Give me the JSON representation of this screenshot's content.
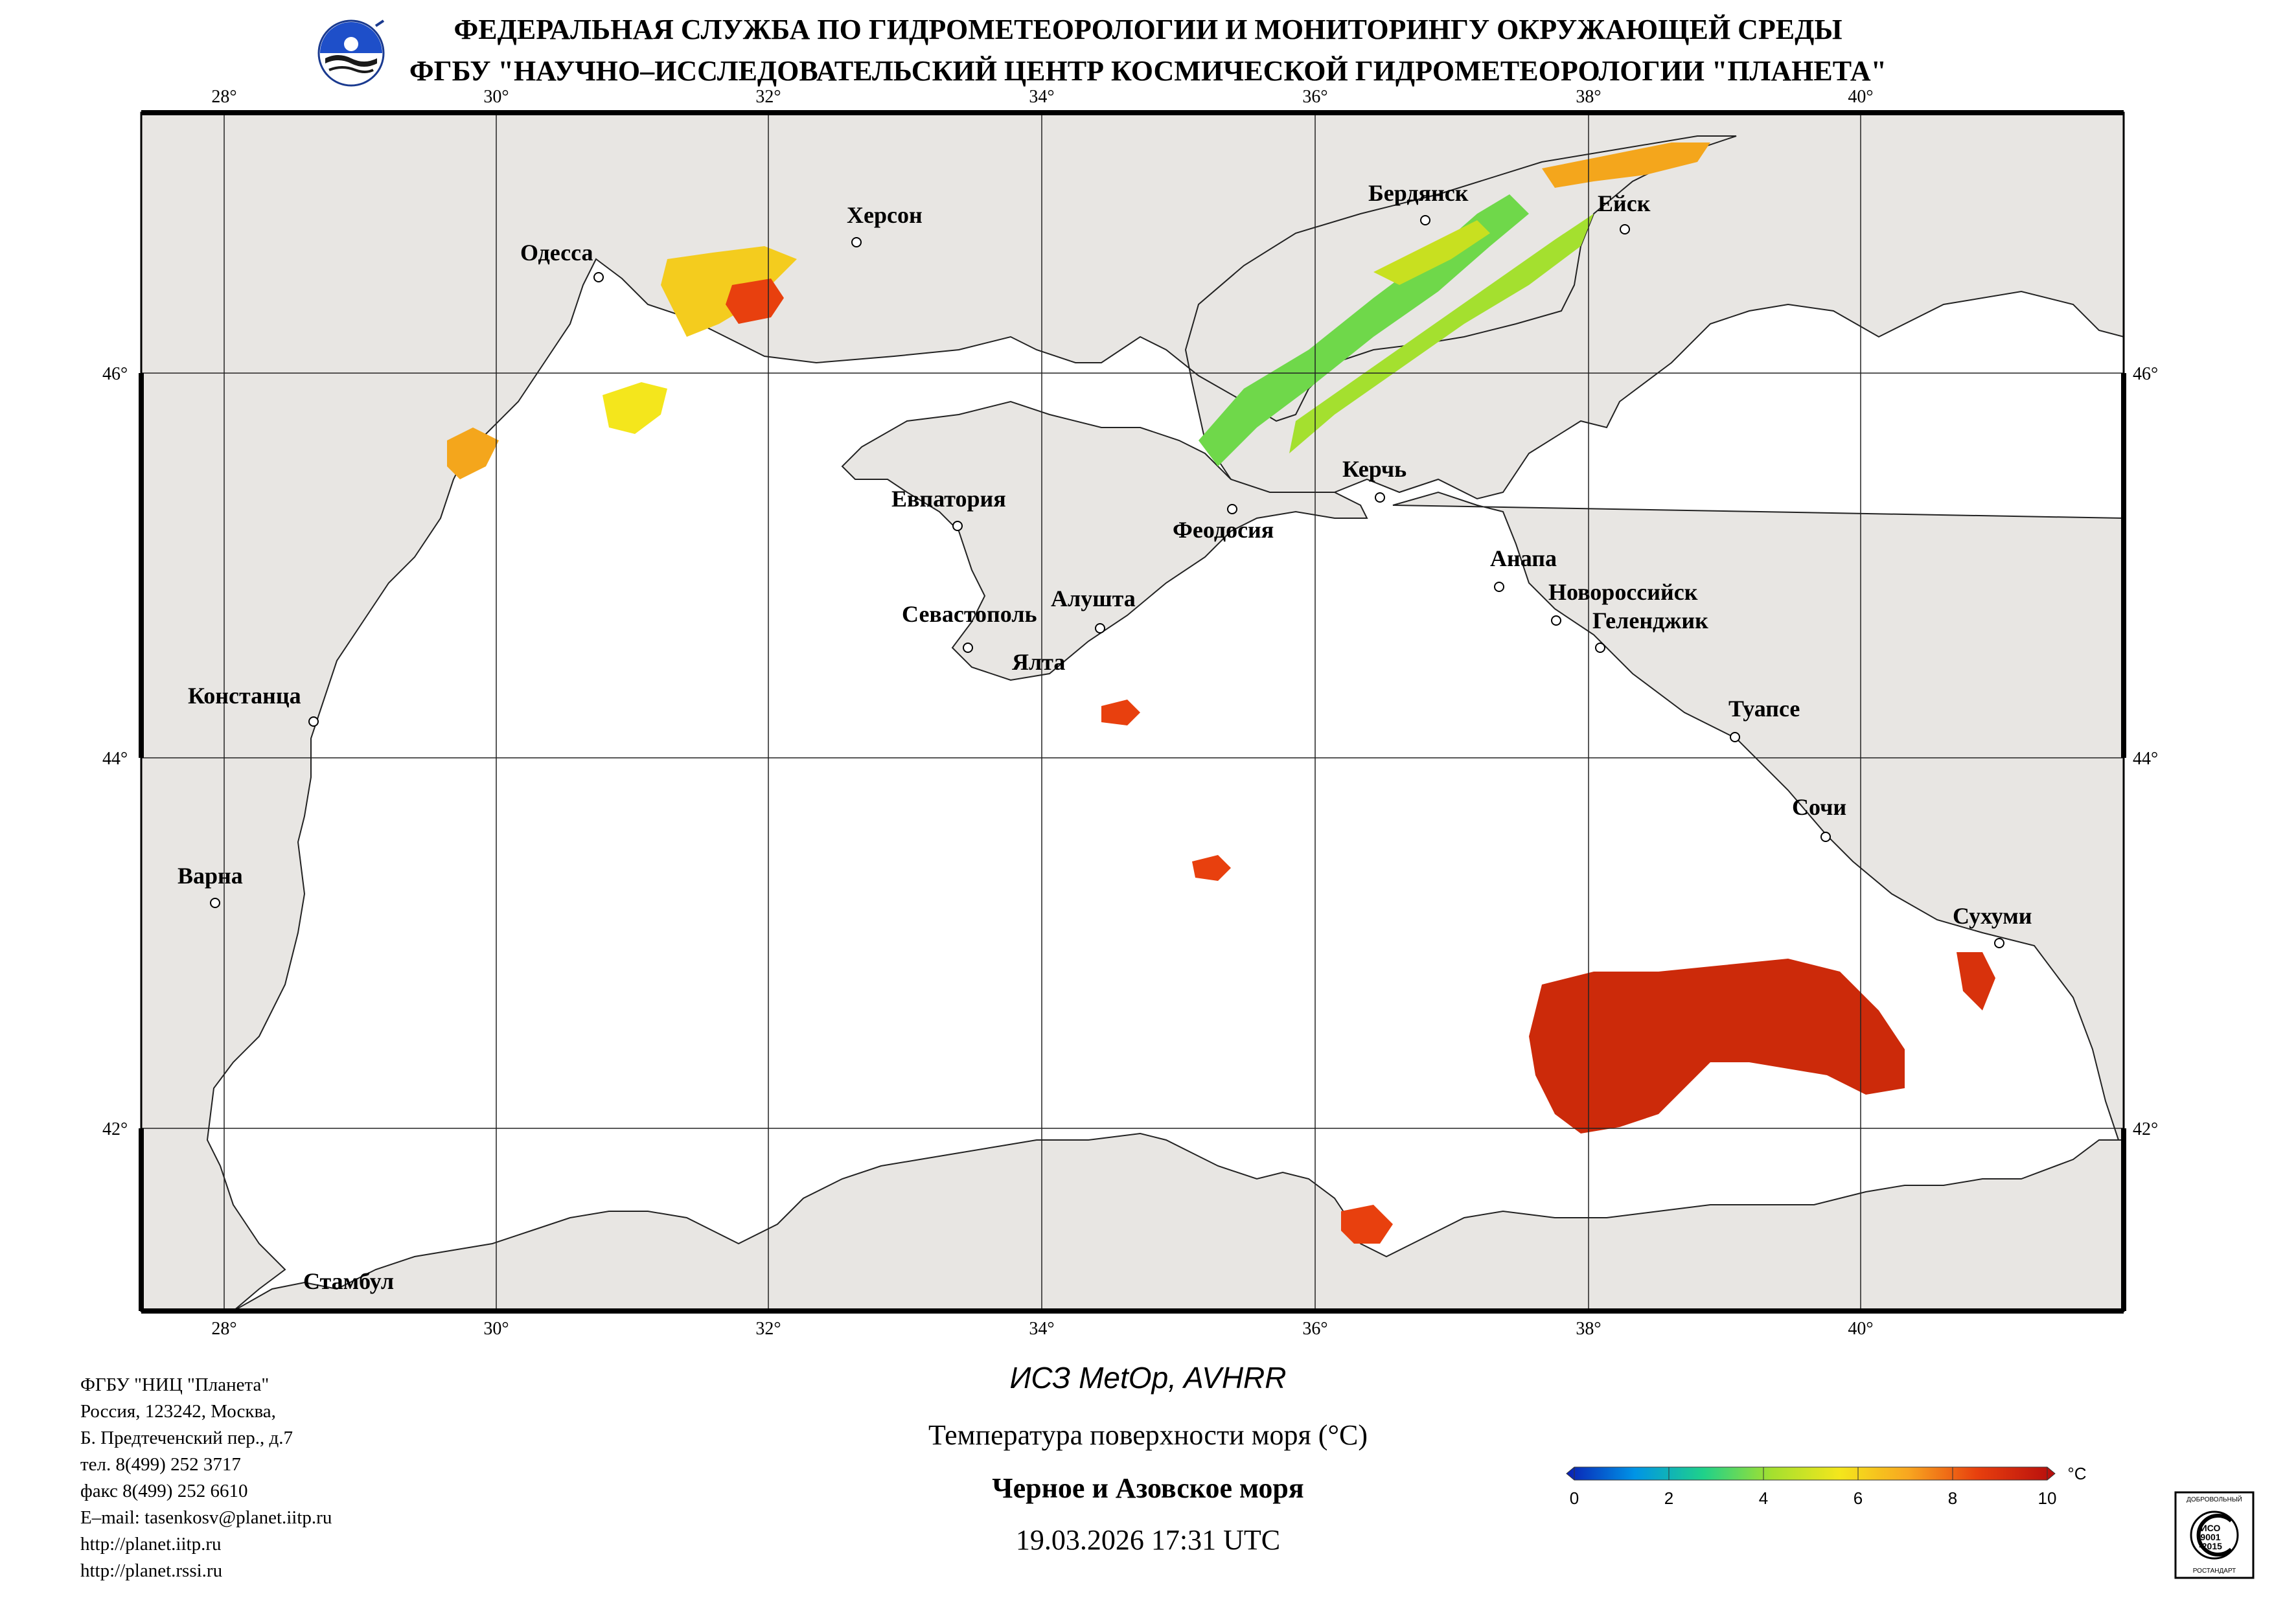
{
  "header": {
    "line1": "ФЕДЕРАЛЬНАЯ СЛУЖБА ПО ГИДРОМЕТЕОРОЛОГИИ И МОНИТОРИНГУ ОКРУЖАЮЩЕЙ СРЕДЫ",
    "line2": "ФГБУ \"НАУЧНО–ИССЛЕДОВАТЕЛЬСКИЙ ЦЕНТР КОСМИЧЕСКОЙ ГИДРОМЕТЕОРОЛОГИИ \"ПЛАНЕТА\"",
    "logo_icon": "planeta-logo-icon"
  },
  "map": {
    "longitude_labels": [
      "28°",
      "30°",
      "32°",
      "34°",
      "36°",
      "38°",
      "40°"
    ],
    "latitude_labels": [
      "46°",
      "44°",
      "42°"
    ],
    "cities": [
      "Одесса",
      "Херсон",
      "Бердянск",
      "Ейск",
      "Евпатория",
      "Керчь",
      "Феодосия",
      "Анапа",
      "Новороссийск",
      "Геленджик",
      "Севастополь",
      "Алушта",
      "Ялта",
      "Констанца",
      "Туапсе",
      "Сочи",
      "Варна",
      "Сухуми",
      "Стамбул"
    ],
    "colors": {
      "land": "#e8e6e3",
      "sea": "#ffffff",
      "frame": "#000000"
    }
  },
  "caption": {
    "satellite": "ИСЗ MetOp, AVHRR",
    "parameter": "Температура поверхности моря (°C)",
    "region": "Черное и Азовское моря",
    "datetime": "19.03.2026 17:31 UTC"
  },
  "colorbar": {
    "unit": "°C",
    "ticks": [
      "0",
      "2",
      "4",
      "6",
      "8",
      "10"
    ],
    "colors": [
      "#0a1fb4",
      "#0094e6",
      "#1fd18a",
      "#a4e02f",
      "#f4e61c",
      "#f8a620",
      "#e8400e",
      "#b60d0d"
    ]
  },
  "contact": {
    "lines": [
      "ФГБУ \"НИЦ \"Планета\"",
      "Россия, 123242, Москва,",
      "Б. Предтеченский пер., д.7",
      "тел. 8(499) 252 3717",
      "факс 8(499) 252 6610",
      "E–mail: tasenkosv@planet.iitp.ru",
      "http://planet.iitp.ru",
      "http://planet.rssi.ru"
    ]
  },
  "badge": {
    "top_text": "ДОБРОВОЛЬНЫЙ",
    "mid_lines": [
      "ИСО",
      "9001",
      "-2015"
    ],
    "bottom_text": "РОСТАНДАРТ"
  }
}
